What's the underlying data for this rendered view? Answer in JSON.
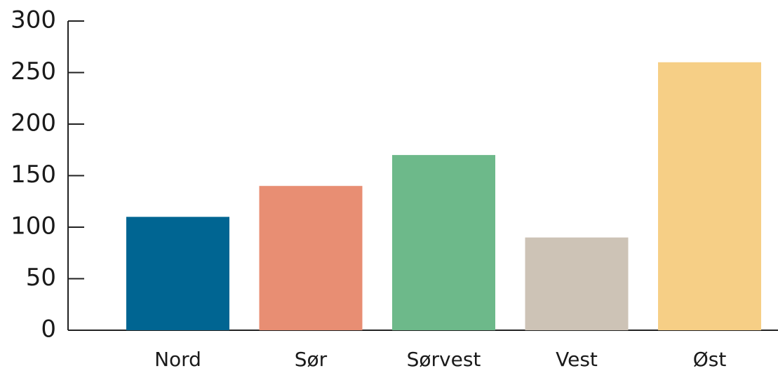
{
  "chart_data": {
    "type": "bar",
    "categories": [
      "Nord",
      "Sør",
      "Sørvest",
      "Vest",
      "Øst"
    ],
    "values": [
      110,
      140,
      170,
      90,
      260
    ],
    "colors": [
      "#006592",
      "#e88e73",
      "#6db98a",
      "#cdc3b6",
      "#f6cf86"
    ],
    "ylim": [
      0,
      300
    ],
    "yticks": [
      0,
      50,
      100,
      150,
      200,
      250,
      300
    ],
    "grid": false
  }
}
